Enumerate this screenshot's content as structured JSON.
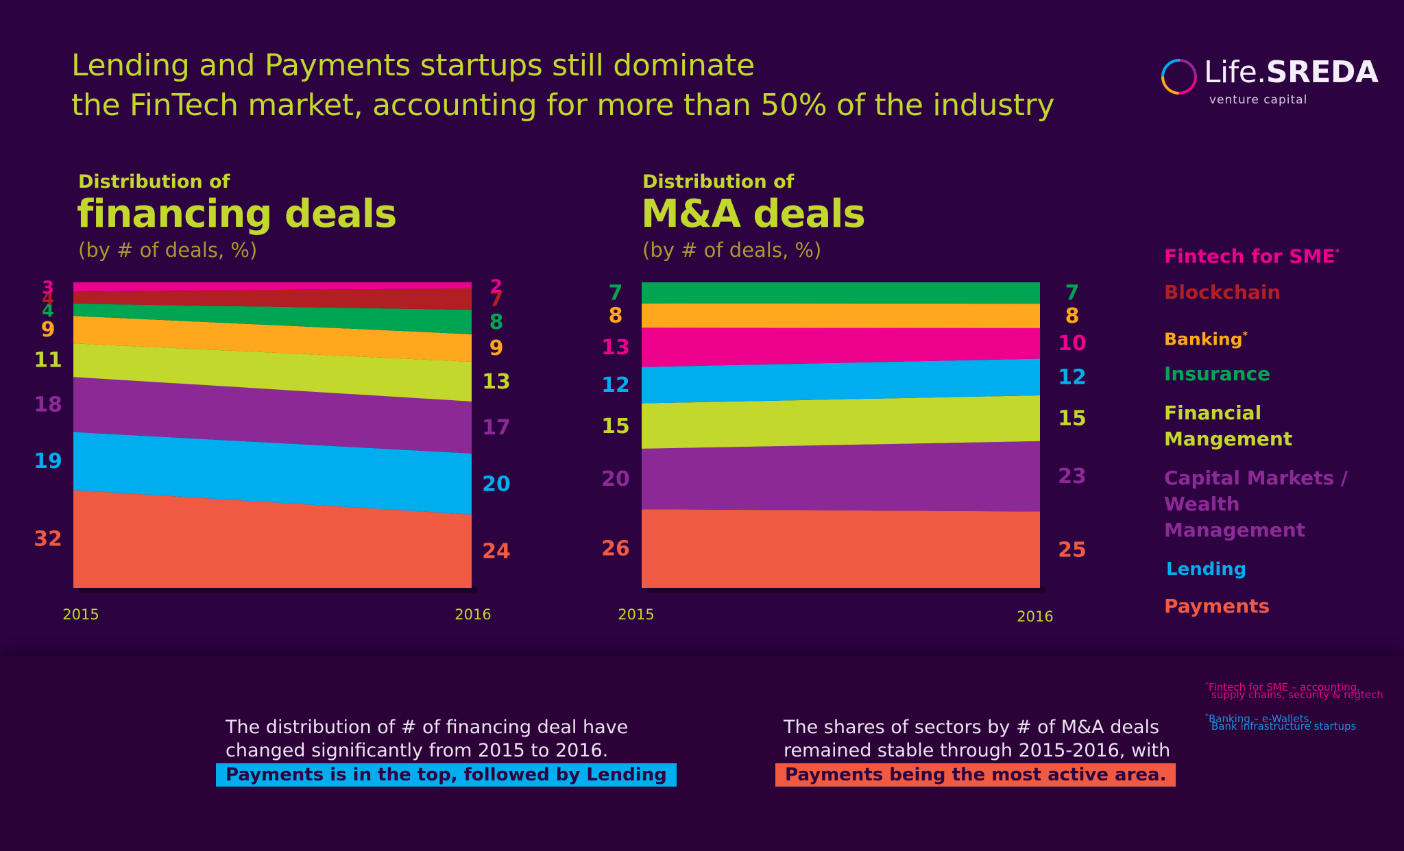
{
  "title": {
    "line1": "Lending and Payments startups still dominate",
    "line2": "the FinTech market, accounting for more than 50% of the industry"
  },
  "logo": {
    "name_light": "Life.",
    "name_bold": "SREDA",
    "tagline": "venture capital",
    "ring_colors": [
      "#ec008c",
      "#ffa81e",
      "#00aeef",
      "#8b2a96"
    ]
  },
  "legend": [
    {
      "label": "Fintech for SME",
      "sup": "*",
      "color": "#ec008c"
    },
    {
      "label": "Blockchain",
      "sup": "",
      "color": "#b11f24"
    },
    {
      "label": "Banking",
      "sup": "*",
      "color": "#ffa81e"
    },
    {
      "label": "Insurance",
      "sup": "",
      "color": "#00a551"
    },
    {
      "label": "Financial Mangement",
      "sup": "",
      "color": "#c3d82c"
    },
    {
      "label": "Capital Markets / Wealth Management",
      "sup": "",
      "color": "#8b2a96"
    },
    {
      "label": "Lending",
      "sup": "",
      "color": "#00aeef"
    },
    {
      "label": "Payments",
      "sup": "",
      "color": "#f15a42"
    }
  ],
  "chart_data": [
    {
      "type": "area",
      "title_pre": "Distribution of",
      "title": "financing deals",
      "subtitle": "(by # of deals, %)",
      "x": [
        "2015",
        "2016"
      ],
      "stacking": "stacked to 100%, bottom to top",
      "series": [
        {
          "name": "Payments",
          "values": [
            32,
            24
          ],
          "color": "#f15a42"
        },
        {
          "name": "Lending",
          "values": [
            19,
            20
          ],
          "color": "#00aeef"
        },
        {
          "name": "Capital Markets / Wealth Management",
          "values": [
            18,
            17
          ],
          "color": "#8b2a96"
        },
        {
          "name": "Financial Mangement",
          "values": [
            11,
            13
          ],
          "color": "#c3d82c"
        },
        {
          "name": "Banking",
          "values": [
            9,
            9
          ],
          "color": "#ffa81e"
        },
        {
          "name": "Insurance",
          "values": [
            4,
            8
          ],
          "color": "#00a551"
        },
        {
          "name": "Blockchain",
          "values": [
            4,
            7
          ],
          "color": "#b11f24"
        },
        {
          "name": "Fintech for SME",
          "values": [
            3,
            2
          ],
          "color": "#ec008c"
        }
      ]
    },
    {
      "type": "area",
      "title_pre": "Distribution of",
      "title": "M&A deals",
      "subtitle": "(by # of deals, %)",
      "x": [
        "2015",
        "2016"
      ],
      "stacking": "stacked to 100%, bottom to top",
      "series": [
        {
          "name": "Payments",
          "values": [
            26,
            25
          ],
          "color": "#f15a42"
        },
        {
          "name": "Capital Markets / Wealth Management",
          "values": [
            20,
            23
          ],
          "color": "#8b2a96"
        },
        {
          "name": "Financial Mangement",
          "values": [
            15,
            15
          ],
          "color": "#c3d82c"
        },
        {
          "name": "Lending",
          "values": [
            12,
            12
          ],
          "color": "#00aeef"
        },
        {
          "name": "Fintech for SME",
          "values": [
            13,
            10
          ],
          "color": "#ec008c"
        },
        {
          "name": "Banking",
          "values": [
            8,
            8
          ],
          "color": "#ffa81e"
        },
        {
          "name": "Insurance",
          "values": [
            7,
            7
          ],
          "color": "#00a551"
        }
      ]
    }
  ],
  "notes": {
    "financing": {
      "line1": "The distribution of # of financing deal have",
      "line2": "changed significantly from 2015 to 2016.",
      "highlight": "Payments is in the top, followed by Lending",
      "highlight_color": "#00aeef"
    },
    "ma": {
      "line1": "The shares of sectors by # of M&A deals",
      "line2": "remained stable through 2015-2016, with",
      "highlight": "Payments being the most active area.",
      "highlight_color": "#f15a42"
    }
  },
  "footnotes": {
    "sme": {
      "mark": "*",
      "line1": "Fintech for SME – accounting,",
      "line2": "supply chains, security & regtech",
      "color": "#ec008c"
    },
    "banking": {
      "mark": "*",
      "line1": "Banking – e-Wallets,",
      "line2": "Bank infrastructure startups",
      "color": "#1f8fe0"
    }
  }
}
